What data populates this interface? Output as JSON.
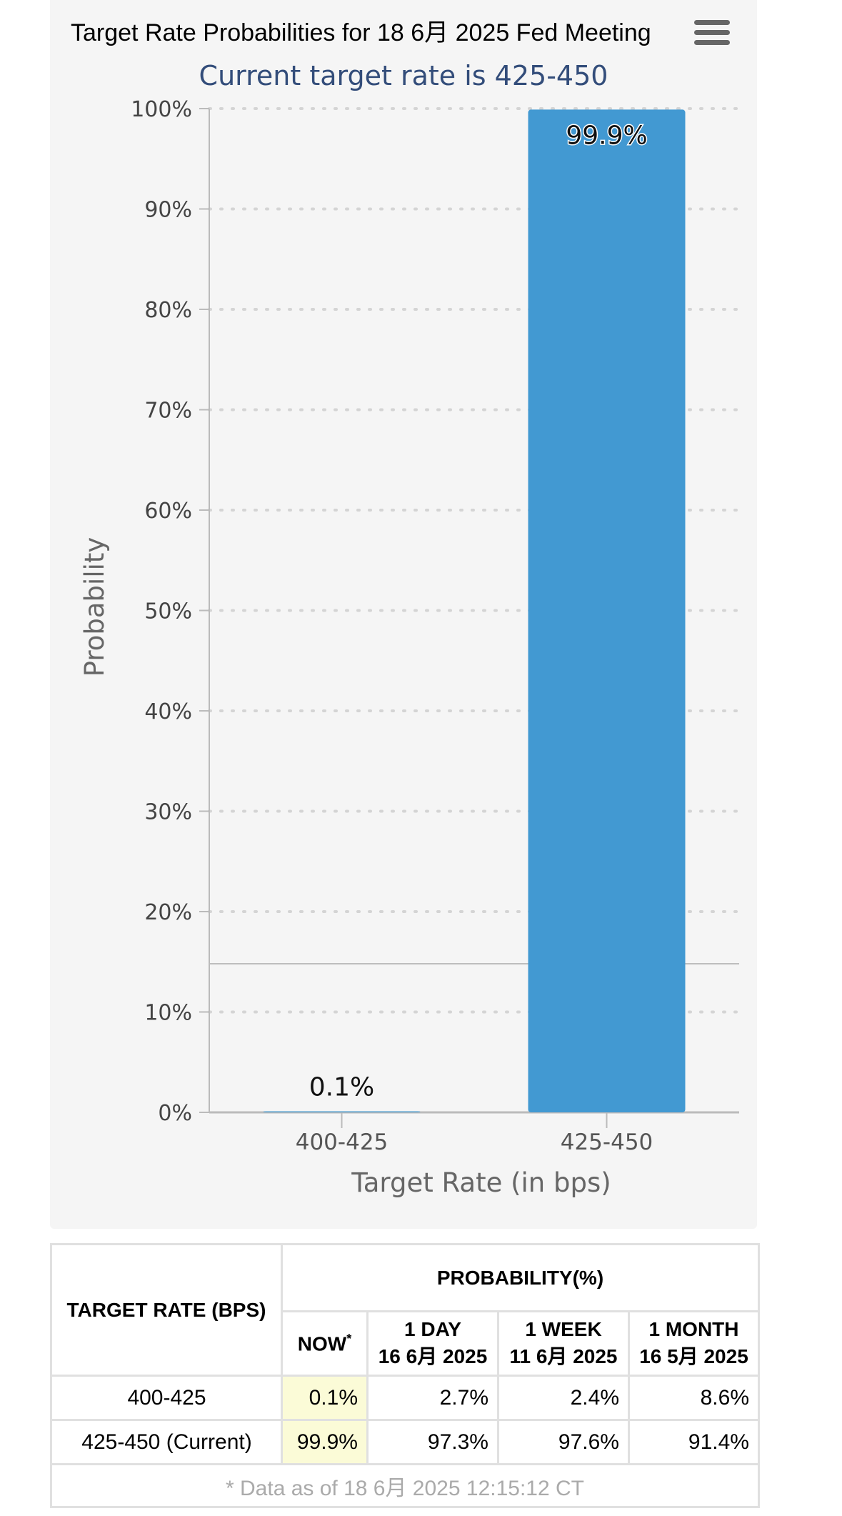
{
  "header": {
    "title": "Target Rate Probabilities for 18 6月 2025 Fed Meeting",
    "subtitle": "Current target rate is 425-450"
  },
  "chart_data": {
    "type": "bar",
    "categories": [
      "400-425",
      "425-450"
    ],
    "values": [
      0.1,
      99.9
    ],
    "data_labels": [
      "0.1%",
      "99.9%"
    ],
    "xlabel": "Target Rate (in bps)",
    "ylabel": "Probability",
    "ylim": [
      0,
      100
    ],
    "yticks": [
      "0%",
      "10%",
      "20%",
      "30%",
      "40%",
      "50%",
      "60%",
      "70%",
      "80%",
      "90%",
      "100%"
    ],
    "grid": "dotted",
    "bar_color": "#4299d2"
  },
  "table": {
    "col_rate": "TARGET RATE (BPS)",
    "col_probability": "PROBABILITY(%)",
    "col_now": "NOW",
    "now_mark": "*",
    "col_1day_label": "1 DAY",
    "col_1day_date": "16 6月 2025",
    "col_1week_label": "1 WEEK",
    "col_1week_date": "11 6月 2025",
    "col_1month_label": "1 MONTH",
    "col_1month_date": "16 5月 2025",
    "rows": [
      {
        "rate": "400-425",
        "now": "0.1%",
        "day": "2.7%",
        "week": "2.4%",
        "month": "8.6%"
      },
      {
        "rate": "425-450 (Current)",
        "now": "99.9%",
        "day": "97.3%",
        "week": "97.6%",
        "month": "91.4%"
      }
    ],
    "footnote": "* Data as of 18 6月 2025 12:15:12 CT"
  }
}
